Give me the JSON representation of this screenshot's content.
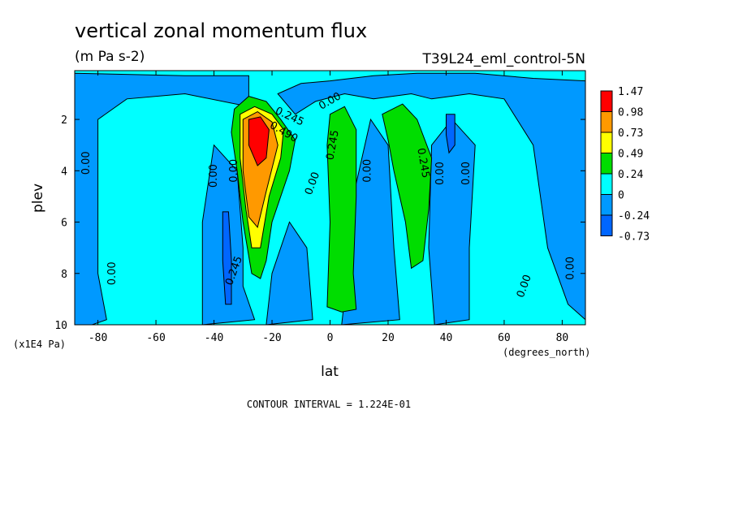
{
  "chart_data": {
    "type": "heatmap",
    "title": "vertical zonal momentum flux",
    "units": "(m Pa s-2)",
    "dataset_label": "T39L24_eml_control-5N",
    "xlabel": "lat",
    "xunits": "(degrees_north)",
    "ylabel": "plev",
    "yunits": "(x1E4 Pa)",
    "xlim": [
      -88,
      88
    ],
    "ylim": [
      10,
      0.1
    ],
    "x_ticks": [
      -80,
      -60,
      -40,
      -20,
      0,
      20,
      40,
      60,
      80
    ],
    "x_tick_labels": [
      "-80",
      "-60",
      "-40",
      "-20",
      "0",
      "20",
      "40",
      "60",
      "80"
    ],
    "y_ticks": [
      2,
      4,
      6,
      8,
      10
    ],
    "y_tick_labels": [
      "2",
      "4",
      "6",
      "8",
      "10"
    ],
    "footer": "CONTOUR INTERVAL = 1.224E-01",
    "legend": {
      "placement": "right",
      "levels": [
        "1.47",
        "0.98",
        "0.73",
        "0.49",
        "0.24",
        "0",
        "-0.24",
        "-0.73"
      ],
      "colors": [
        "#ff0000",
        "#ff9900",
        "#ffff00",
        "#00dd00",
        "#00ffff",
        "#0099ff",
        "#0066ff"
      ]
    },
    "background_color": "#00ffff",
    "regions": [
      {
        "name": "negative-band-west",
        "level": "-0.24",
        "color": "#0099ff",
        "points": [
          [
            -88,
            0.2
          ],
          [
            -50,
            0.3
          ],
          [
            -28,
            0.3
          ],
          [
            -28,
            1.5
          ],
          [
            -50,
            1
          ],
          [
            -70,
            1.2
          ],
          [
            -80,
            2
          ],
          [
            -80,
            8
          ],
          [
            -77,
            9.8
          ],
          [
            -82,
            10
          ],
          [
            -88,
            10
          ]
        ]
      },
      {
        "name": "negative-band-north",
        "level": "-0.24",
        "color": "#0099ff",
        "points": [
          [
            -18,
            1
          ],
          [
            -10,
            0.6
          ],
          [
            0,
            0.5
          ],
          [
            15,
            0.3
          ],
          [
            30,
            0.2
          ],
          [
            50,
            0.2
          ],
          [
            70,
            0.4
          ],
          [
            88,
            0.5
          ],
          [
            88,
            9.8
          ],
          [
            82,
            9.2
          ],
          [
            75,
            7
          ],
          [
            70,
            3
          ],
          [
            60,
            1.2
          ],
          [
            48,
            1
          ],
          [
            35,
            1.2
          ],
          [
            28,
            1
          ],
          [
            15,
            1.2
          ],
          [
            5,
            1
          ],
          [
            -5,
            1.3
          ],
          [
            -12,
            1.8
          ]
        ]
      },
      {
        "name": "negative-column-60",
        "level": "-0.24",
        "color": "#0099ff",
        "points": [
          [
            -40,
            3
          ],
          [
            -32,
            4
          ],
          [
            -30,
            7
          ],
          [
            -30,
            8.5
          ],
          [
            -26,
            9.8
          ],
          [
            -44,
            10
          ],
          [
            -44,
            6
          ]
        ]
      },
      {
        "name": "negative-column-15",
        "level": "-0.24",
        "color": "#0099ff",
        "points": [
          [
            -20,
            8
          ],
          [
            -14,
            6
          ],
          [
            -8,
            7
          ],
          [
            -6,
            9.8
          ],
          [
            -22,
            10
          ]
        ]
      },
      {
        "name": "negative-column-12n",
        "level": "-0.24",
        "color": "#0099ff",
        "points": [
          [
            8,
            5
          ],
          [
            14,
            2
          ],
          [
            20,
            3
          ],
          [
            22,
            7
          ],
          [
            24,
            9.8
          ],
          [
            4,
            10
          ],
          [
            6,
            8
          ]
        ]
      },
      {
        "name": "negative-column-45n",
        "level": "-0.24",
        "color": "#0099ff",
        "points": [
          [
            35,
            3
          ],
          [
            42,
            2
          ],
          [
            50,
            3
          ],
          [
            48,
            7
          ],
          [
            48,
            9.8
          ],
          [
            36,
            10
          ],
          [
            34,
            7
          ]
        ]
      },
      {
        "name": "positive-tongue-sh",
        "level": "0.24",
        "color": "#00dd00",
        "points": [
          [
            -33,
            1.6
          ],
          [
            -28,
            1.1
          ],
          [
            -22,
            1.3
          ],
          [
            -17,
            2
          ],
          [
            -12,
            2.8
          ],
          [
            -14,
            4
          ],
          [
            -20,
            6
          ],
          [
            -22,
            7.5
          ],
          [
            -24,
            8.2
          ],
          [
            -27,
            8
          ],
          [
            -30,
            6
          ],
          [
            -32,
            4
          ],
          [
            -34,
            2.5
          ]
        ]
      },
      {
        "name": "yellow-core-sh",
        "level": "0.49",
        "color": "#ffff00",
        "points": [
          [
            -31,
            1.8
          ],
          [
            -26,
            1.5
          ],
          [
            -20,
            1.8
          ],
          [
            -16,
            2.4
          ],
          [
            -17,
            3.5
          ],
          [
            -21,
            5
          ],
          [
            -24,
            7
          ],
          [
            -27,
            7
          ],
          [
            -29,
            5.5
          ],
          [
            -31,
            3.5
          ]
        ]
      },
      {
        "name": "orange-core-sh",
        "level": "0.73",
        "color": "#ff9900",
        "points": [
          [
            -30,
            2
          ],
          [
            -25,
            1.7
          ],
          [
            -20,
            2.1
          ],
          [
            -18,
            3
          ],
          [
            -22,
            4.8
          ],
          [
            -25,
            6.2
          ],
          [
            -28,
            5.8
          ],
          [
            -30,
            4
          ]
        ]
      },
      {
        "name": "red-core-sh",
        "level": "0.98",
        "color": "#ff0000",
        "points": [
          [
            -28,
            2
          ],
          [
            -24,
            1.9
          ],
          [
            -21,
            2.4
          ],
          [
            -22,
            3.5
          ],
          [
            -25,
            3.8
          ],
          [
            -28,
            3
          ]
        ]
      },
      {
        "name": "positive-column-equator",
        "level": "0.24",
        "color": "#00dd00",
        "points": [
          [
            0,
            1.8
          ],
          [
            5,
            1.5
          ],
          [
            9,
            2.4
          ],
          [
            9,
            5
          ],
          [
            8,
            8
          ],
          [
            9,
            9.4
          ],
          [
            4,
            9.5
          ],
          [
            -1,
            9.3
          ],
          [
            0,
            6
          ],
          [
            -1,
            3
          ]
        ]
      },
      {
        "name": "positive-column-25n",
        "level": "0.24",
        "color": "#00dd00",
        "points": [
          [
            18,
            1.8
          ],
          [
            25,
            1.4
          ],
          [
            30,
            2
          ],
          [
            35,
            3.5
          ],
          [
            34,
            5.5
          ],
          [
            32,
            7.5
          ],
          [
            28,
            7.8
          ],
          [
            26,
            6
          ],
          [
            22,
            4
          ],
          [
            20,
            2.8
          ]
        ]
      },
      {
        "name": "strong-negative-40s",
        "level": "-0.73",
        "color": "#0066ff",
        "points": [
          [
            -37,
            5.6
          ],
          [
            -35,
            5.6
          ],
          [
            -34,
            7.5
          ],
          [
            -34,
            9.2
          ],
          [
            -36,
            9.2
          ],
          [
            -37,
            7.5
          ]
        ]
      },
      {
        "name": "strong-negative-40n",
        "level": "-0.73",
        "color": "#0066ff",
        "points": [
          [
            40,
            1.8
          ],
          [
            43,
            1.8
          ],
          [
            43,
            3
          ],
          [
            41,
            3.3
          ],
          [
            40,
            2.6
          ]
        ]
      }
    ],
    "contour_labels": [
      {
        "text": "0.00",
        "x": -84,
        "y": 3.7,
        "rotate": -90
      },
      {
        "text": "0.00",
        "x": -75,
        "y": 8.0,
        "rotate": -90
      },
      {
        "text": "0.00",
        "x": -40,
        "y": 4.2,
        "rotate": -90
      },
      {
        "text": "0.00",
        "x": -33,
        "y": 4.0,
        "rotate": -90
      },
      {
        "text": "0.245",
        "x": -33,
        "y": 7.9,
        "rotate": -70
      },
      {
        "text": "0.245",
        "x": -14,
        "y": 1.9,
        "rotate": 25
      },
      {
        "text": "0.490",
        "x": -16,
        "y": 2.5,
        "rotate": 30
      },
      {
        "text": "0.00",
        "x": -6,
        "y": 4.5,
        "rotate": -70
      },
      {
        "text": "0.00",
        "x": 0,
        "y": 1.3,
        "rotate": -30
      },
      {
        "text": "0.245",
        "x": 1,
        "y": 3.0,
        "rotate": -80
      },
      {
        "text": "0.00",
        "x": 13,
        "y": 4.0,
        "rotate": -90
      },
      {
        "text": "0.245",
        "x": 32,
        "y": 3.7,
        "rotate": 80
      },
      {
        "text": "0.00",
        "x": 38,
        "y": 4.1,
        "rotate": -90
      },
      {
        "text": "0.00",
        "x": 47,
        "y": 4.1,
        "rotate": -90
      },
      {
        "text": "0.00",
        "x": 67,
        "y": 8.5,
        "rotate": -70
      },
      {
        "text": "0.00",
        "x": 83,
        "y": 7.8,
        "rotate": -90
      }
    ]
  }
}
